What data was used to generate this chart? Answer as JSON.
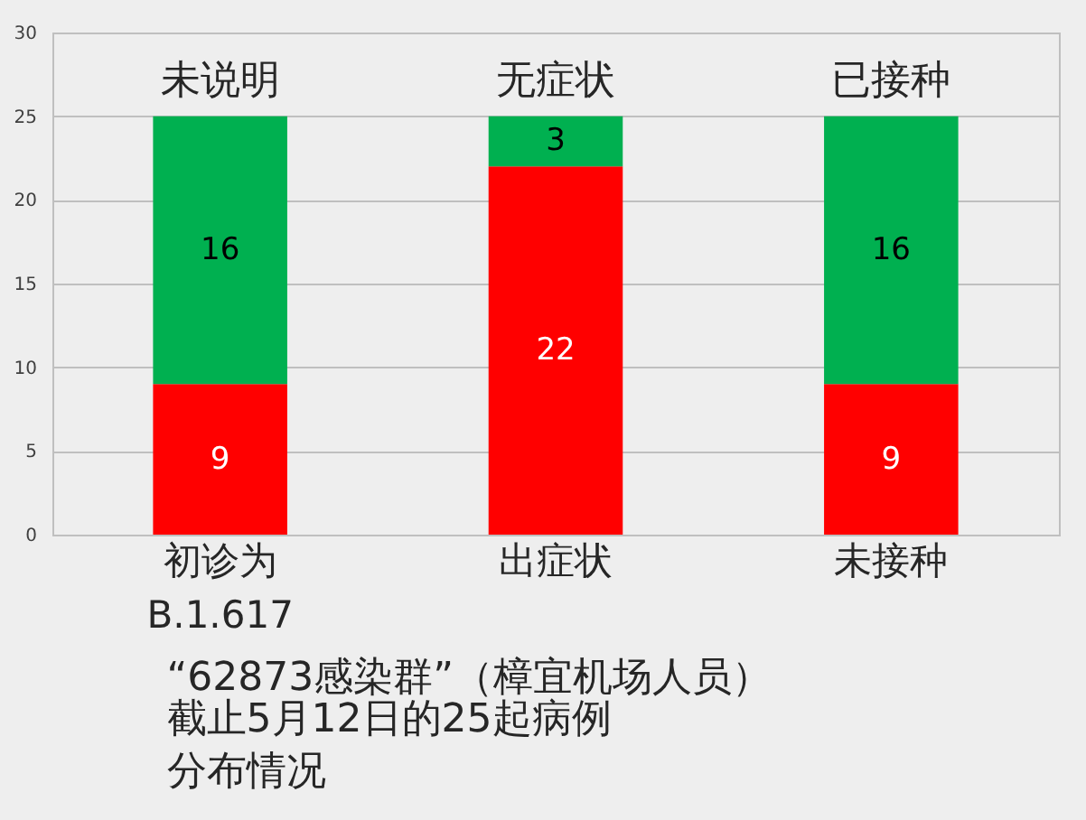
{
  "chart_data": {
    "type": "bar",
    "stacked": true,
    "title": "“62873感染群”（樟宜机场人员）",
    "subtitle": "截止5月12日的25起病例分布情况",
    "categories": [
      "初诊为\nB.1.617",
      "出症状",
      "未接种"
    ],
    "series": [
      {
        "color": "#ff0000",
        "values": [
          9,
          22,
          9
        ]
      },
      {
        "color": "#00b050",
        "values": [
          16,
          3,
          16
        ]
      }
    ],
    "ylim": [
      0,
      30
    ],
    "yticks": [
      0,
      5,
      10,
      15,
      20,
      25,
      30
    ],
    "grid": "y",
    "data_labels": true,
    "annotations": [
      {
        "text": "未说明",
        "x": "初诊为\nB.1.617",
        "y": 25
      },
      {
        "text": "无症状",
        "x": "出症状",
        "y": 25
      },
      {
        "text": "已接种",
        "x": "未接种",
        "y": 25
      }
    ]
  }
}
